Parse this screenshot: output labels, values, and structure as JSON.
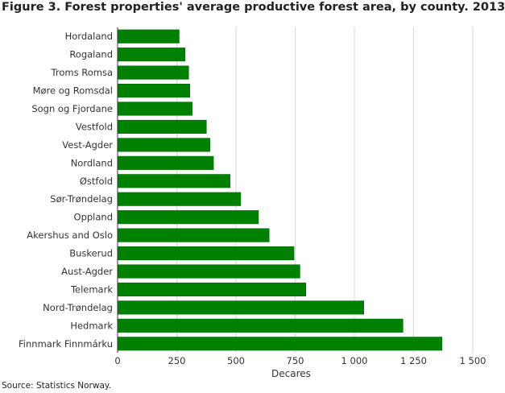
{
  "chart_data": {
    "type": "bar",
    "orientation": "horizontal",
    "title": "Figure 3. Forest properties' average productive forest area, by county. 2013",
    "xlabel": "Decares",
    "ylabel": "",
    "xlim": [
      0,
      1500
    ],
    "xticks": [
      0,
      250,
      500,
      750,
      1000,
      1250,
      1500
    ],
    "xtick_labels": [
      "0",
      "250",
      "500",
      "750",
      "1 000",
      "1 250",
      "1 500"
    ],
    "grid": true,
    "bar_color": "#008000",
    "categories": [
      "Hordaland",
      "Rogaland",
      "Troms Romsa",
      "Møre og Romsdal",
      "Sogn og Fjordane",
      "Vestfold",
      "Vest-Agder",
      "Nordland",
      "Østfold",
      "Sør-Trøndelag",
      "Oppland",
      "Akershus and Oslo",
      "Buskerud",
      "Aust-Agder",
      "Telemark",
      "Nord-Trøndelag",
      "Hedmark",
      "Finnmark Finnmárku"
    ],
    "values": [
      260,
      285,
      300,
      305,
      315,
      375,
      390,
      405,
      475,
      520,
      595,
      640,
      745,
      770,
      795,
      1040,
      1205,
      1370
    ]
  },
  "source": "Source: Statistics Norway."
}
